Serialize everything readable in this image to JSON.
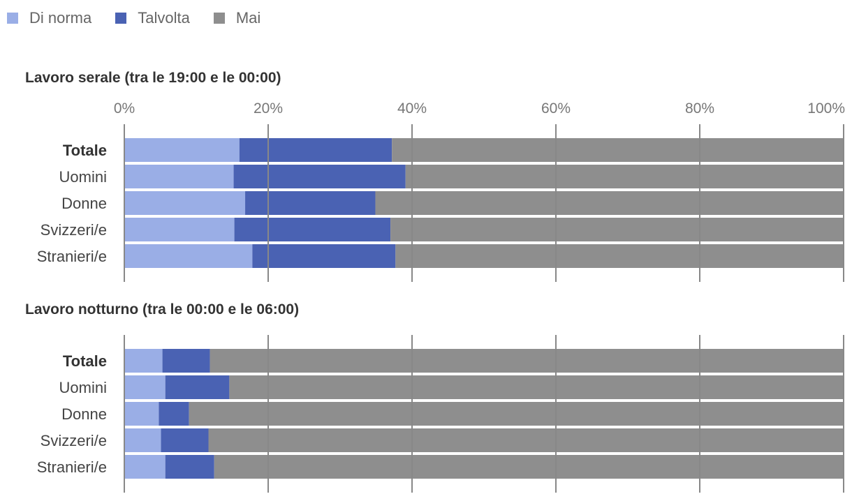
{
  "legend": [
    {
      "label": "Di norma",
      "color": "#9aaee6"
    },
    {
      "label": "Talvolta",
      "color": "#4a62b3"
    },
    {
      "label": "Mai",
      "color": "#8e8e8e"
    }
  ],
  "chart_data": [
    {
      "type": "bar",
      "orientation": "horizontal",
      "stacked": true,
      "title": "Lavoro serale (tra le 19:00 e le 00:00)",
      "categories": [
        "Totale",
        "Uomini",
        "Donne",
        "Svizzeri/e",
        "Stranieri/e"
      ],
      "bold_categories": [
        "Totale"
      ],
      "tick_labels": [
        "0%",
        "20%",
        "40%",
        "60%",
        "80%",
        "100%"
      ],
      "series": [
        {
          "name": "Di norma",
          "values": [
            16.0,
            15.2,
            16.8,
            15.3,
            17.8
          ]
        },
        {
          "name": "Talvolta",
          "values": [
            21.2,
            23.9,
            18.1,
            21.7,
            19.9
          ]
        },
        {
          "name": "Mai",
          "values": [
            62.8,
            60.9,
            65.1,
            63.0,
            62.3
          ]
        }
      ],
      "xlim": [
        0,
        100
      ],
      "grid": true,
      "legend": "top-left"
    },
    {
      "type": "bar",
      "orientation": "horizontal",
      "stacked": true,
      "title": "Lavoro notturno (tra le 00:00 e le 06:00)",
      "categories": [
        "Totale",
        "Uomini",
        "Donne",
        "Svizzeri/e",
        "Stranieri/e"
      ],
      "bold_categories": [
        "Totale"
      ],
      "tick_labels": [],
      "series": [
        {
          "name": "Di norma",
          "values": [
            5.3,
            5.7,
            4.8,
            5.1,
            5.7
          ]
        },
        {
          "name": "Talvolta",
          "values": [
            6.6,
            8.9,
            4.2,
            6.6,
            6.8
          ]
        },
        {
          "name": "Mai",
          "values": [
            88.1,
            85.4,
            91.0,
            88.3,
            87.5
          ]
        }
      ],
      "xlim": [
        0,
        100
      ],
      "grid": true,
      "legend": "top-left"
    }
  ]
}
